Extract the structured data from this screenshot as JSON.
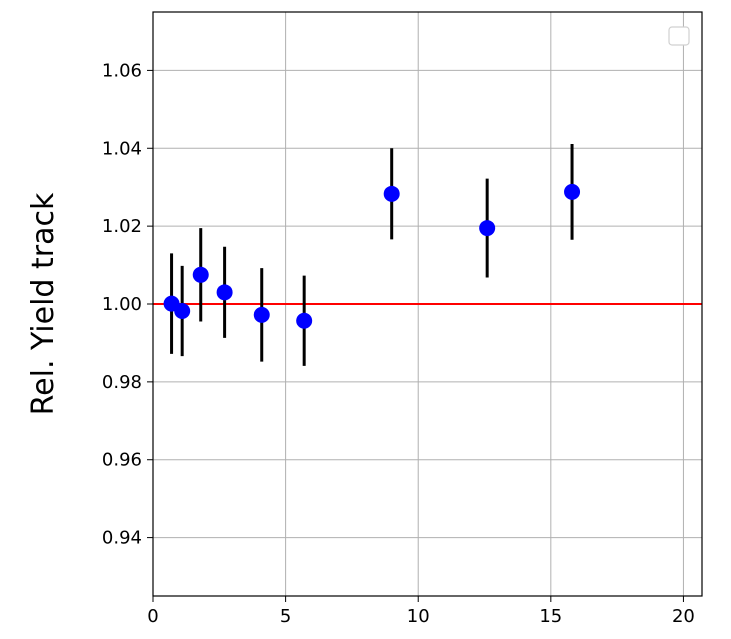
{
  "chart_data": {
    "type": "scatter",
    "title": "",
    "xlabel": "",
    "ylabel": "Rel. Yield track",
    "xlim": [
      0,
      20.7
    ],
    "ylim": [
      0.925,
      1.075
    ],
    "grid": true,
    "legend_placement": "top-right",
    "xticks": [
      0,
      5,
      10,
      15,
      20
    ],
    "xtick_labels": [
      "0",
      "5",
      "10",
      "15",
      "20"
    ],
    "yticks": [
      0.94,
      0.96,
      0.98,
      1.0,
      1.02,
      1.04,
      1.06
    ],
    "ytick_labels": [
      "0.94",
      "0.96",
      "0.98",
      "1.00",
      "1.02",
      "1.04",
      "1.06"
    ],
    "reference_line": {
      "y": 1.0,
      "color": "#ff0000"
    },
    "series": [
      {
        "marker_color": "#0000ff",
        "errorbar_color": "#000000",
        "points": [
          {
            "x": 0.7,
            "y": 1.0001,
            "err": 0.0129
          },
          {
            "x": 1.1,
            "y": 0.9982,
            "err": 0.0116
          },
          {
            "x": 1.8,
            "y": 1.0075,
            "err": 0.012
          },
          {
            "x": 2.7,
            "y": 1.003,
            "err": 0.0117
          },
          {
            "x": 4.1,
            "y": 0.9972,
            "err": 0.012
          },
          {
            "x": 5.7,
            "y": 0.9957,
            "err": 0.0116
          },
          {
            "x": 9.0,
            "y": 1.0283,
            "err": 0.0117
          },
          {
            "x": 12.6,
            "y": 1.0195,
            "err": 0.0127
          },
          {
            "x": 15.8,
            "y": 1.0288,
            "err": 0.0123
          }
        ]
      }
    ]
  }
}
